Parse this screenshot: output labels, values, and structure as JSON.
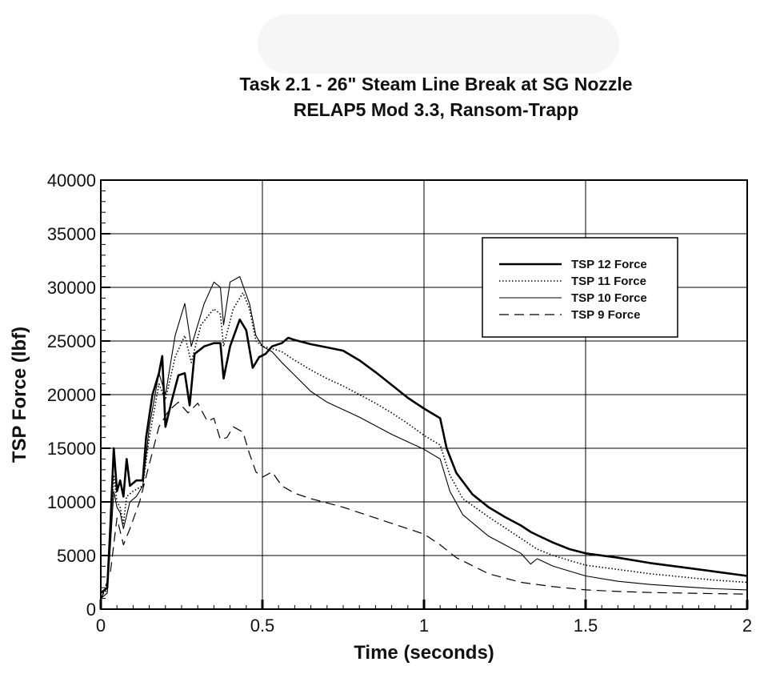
{
  "chart_data": {
    "type": "line",
    "title": "Task 2.1 - 26\" Steam Line Break at SG Nozzle",
    "subtitle": "RELAP5 Mod 3.3, Ransom-Trapp",
    "xlabel": "Time (seconds)",
    "ylabel": "TSP Force (lbf)",
    "xlim": [
      0,
      2
    ],
    "ylim": [
      0,
      40000
    ],
    "x_ticks": [
      "0",
      "0.5",
      "1",
      "1.5",
      "2"
    ],
    "y_ticks": [
      "0",
      "5000",
      "10000",
      "15000",
      "20000",
      "25000",
      "30000",
      "35000",
      "40000"
    ],
    "grid": true,
    "legend_position": "upper-right",
    "series": [
      {
        "name": "TSP 12 Force",
        "style": "solid-thick",
        "points": [
          [
            0,
            1500
          ],
          [
            0.02,
            2000
          ],
          [
            0.03,
            8000
          ],
          [
            0.04,
            15000
          ],
          [
            0.05,
            11000
          ],
          [
            0.06,
            12000
          ],
          [
            0.07,
            10500
          ],
          [
            0.08,
            14000
          ],
          [
            0.09,
            11500
          ],
          [
            0.11,
            12000
          ],
          [
            0.13,
            12000
          ],
          [
            0.14,
            16000
          ],
          [
            0.16,
            20000
          ],
          [
            0.18,
            22000
          ],
          [
            0.19,
            23600
          ],
          [
            0.2,
            17000
          ],
          [
            0.22,
            19500
          ],
          [
            0.24,
            21800
          ],
          [
            0.26,
            22000
          ],
          [
            0.275,
            19000
          ],
          [
            0.29,
            23800
          ],
          [
            0.32,
            24500
          ],
          [
            0.35,
            24800
          ],
          [
            0.37,
            24800
          ],
          [
            0.38,
            21500
          ],
          [
            0.4,
            24500
          ],
          [
            0.43,
            27000
          ],
          [
            0.45,
            26000
          ],
          [
            0.47,
            22500
          ],
          [
            0.49,
            23500
          ],
          [
            0.51,
            23800
          ],
          [
            0.53,
            24500
          ],
          [
            0.56,
            24800
          ],
          [
            0.58,
            25300
          ],
          [
            0.6,
            25100
          ],
          [
            0.65,
            24700
          ],
          [
            0.7,
            24400
          ],
          [
            0.75,
            24100
          ],
          [
            0.8,
            23200
          ],
          [
            0.85,
            22100
          ],
          [
            0.9,
            20900
          ],
          [
            0.95,
            19700
          ],
          [
            1.0,
            18700
          ],
          [
            1.05,
            17800
          ],
          [
            1.07,
            15000
          ],
          [
            1.1,
            12700
          ],
          [
            1.15,
            10700
          ],
          [
            1.2,
            9500
          ],
          [
            1.25,
            8600
          ],
          [
            1.3,
            7800
          ],
          [
            1.33,
            7200
          ],
          [
            1.35,
            6900
          ],
          [
            1.4,
            6200
          ],
          [
            1.45,
            5600
          ],
          [
            1.5,
            5200
          ],
          [
            1.6,
            4800
          ],
          [
            1.7,
            4300
          ],
          [
            1.8,
            3900
          ],
          [
            1.9,
            3500
          ],
          [
            2.0,
            3100
          ]
        ]
      },
      {
        "name": "TSP 11 Force",
        "style": "dotted",
        "points": [
          [
            0,
            1200
          ],
          [
            0.02,
            1800
          ],
          [
            0.03,
            7000
          ],
          [
            0.04,
            12500
          ],
          [
            0.05,
            10000
          ],
          [
            0.06,
            9500
          ],
          [
            0.07,
            8000
          ],
          [
            0.08,
            10500
          ],
          [
            0.1,
            11000
          ],
          [
            0.13,
            11500
          ],
          [
            0.15,
            16000
          ],
          [
            0.18,
            21000
          ],
          [
            0.2,
            19500
          ],
          [
            0.23,
            23500
          ],
          [
            0.26,
            25500
          ],
          [
            0.28,
            23000
          ],
          [
            0.31,
            26500
          ],
          [
            0.35,
            28000
          ],
          [
            0.37,
            27500
          ],
          [
            0.38,
            24500
          ],
          [
            0.41,
            28000
          ],
          [
            0.44,
            29500
          ],
          [
            0.46,
            28000
          ],
          [
            0.48,
            25000
          ],
          [
            0.5,
            24500
          ],
          [
            0.53,
            24300
          ],
          [
            0.56,
            24000
          ],
          [
            0.6,
            23200
          ],
          [
            0.65,
            22300
          ],
          [
            0.7,
            21500
          ],
          [
            0.75,
            20800
          ],
          [
            0.8,
            20000
          ],
          [
            0.85,
            19200
          ],
          [
            0.9,
            18300
          ],
          [
            0.95,
            17300
          ],
          [
            1.0,
            16200
          ],
          [
            1.05,
            15300
          ],
          [
            1.08,
            12500
          ],
          [
            1.12,
            10300
          ],
          [
            1.2,
            8600
          ],
          [
            1.3,
            6600
          ],
          [
            1.35,
            5600
          ],
          [
            1.4,
            5000
          ],
          [
            1.5,
            4100
          ],
          [
            1.6,
            3700
          ],
          [
            1.7,
            3300
          ],
          [
            1.8,
            3000
          ],
          [
            1.9,
            2700
          ],
          [
            2.0,
            2500
          ]
        ]
      },
      {
        "name": "TSP 10 Force",
        "style": "solid-thin",
        "points": [
          [
            0,
            1000
          ],
          [
            0.02,
            1500
          ],
          [
            0.03,
            6000
          ],
          [
            0.04,
            11000
          ],
          [
            0.05,
            9500
          ],
          [
            0.06,
            9000
          ],
          [
            0.07,
            7500
          ],
          [
            0.09,
            10000
          ],
          [
            0.11,
            10500
          ],
          [
            0.13,
            11500
          ],
          [
            0.15,
            17000
          ],
          [
            0.18,
            22000
          ],
          [
            0.2,
            20000
          ],
          [
            0.23,
            25500
          ],
          [
            0.26,
            28500
          ],
          [
            0.28,
            24500
          ],
          [
            0.32,
            28500
          ],
          [
            0.35,
            30500
          ],
          [
            0.37,
            30000
          ],
          [
            0.38,
            26500
          ],
          [
            0.4,
            30500
          ],
          [
            0.43,
            31000
          ],
          [
            0.46,
            28500
          ],
          [
            0.48,
            25500
          ],
          [
            0.5,
            24500
          ],
          [
            0.53,
            24000
          ],
          [
            0.56,
            23000
          ],
          [
            0.6,
            21800
          ],
          [
            0.65,
            20300
          ],
          [
            0.7,
            19300
          ],
          [
            0.75,
            18600
          ],
          [
            0.8,
            17900
          ],
          [
            0.85,
            17100
          ],
          [
            0.9,
            16300
          ],
          [
            0.95,
            15600
          ],
          [
            1.0,
            14900
          ],
          [
            1.05,
            14000
          ],
          [
            1.08,
            11000
          ],
          [
            1.12,
            8800
          ],
          [
            1.2,
            6800
          ],
          [
            1.3,
            5200
          ],
          [
            1.33,
            4200
          ],
          [
            1.35,
            4700
          ],
          [
            1.4,
            4000
          ],
          [
            1.5,
            3100
          ],
          [
            1.6,
            2600
          ],
          [
            1.7,
            2300
          ],
          [
            1.8,
            2100
          ],
          [
            1.9,
            1900
          ],
          [
            2.0,
            1800
          ]
        ]
      },
      {
        "name": "TSP 9 Force",
        "style": "dashed",
        "points": [
          [
            0,
            800
          ],
          [
            0.03,
            3500
          ],
          [
            0.05,
            8500
          ],
          [
            0.07,
            6000
          ],
          [
            0.09,
            7500
          ],
          [
            0.12,
            10000
          ],
          [
            0.15,
            13500
          ],
          [
            0.18,
            17000
          ],
          [
            0.21,
            18500
          ],
          [
            0.24,
            19300
          ],
          [
            0.27,
            18300
          ],
          [
            0.3,
            19200
          ],
          [
            0.33,
            17500
          ],
          [
            0.35,
            17800
          ],
          [
            0.37,
            15800
          ],
          [
            0.39,
            16000
          ],
          [
            0.41,
            17000
          ],
          [
            0.44,
            16500
          ],
          [
            0.46,
            14500
          ],
          [
            0.48,
            12800
          ],
          [
            0.5,
            12300
          ],
          [
            0.53,
            12800
          ],
          [
            0.56,
            11500
          ],
          [
            0.6,
            10800
          ],
          [
            0.65,
            10300
          ],
          [
            0.7,
            9900
          ],
          [
            0.75,
            9500
          ],
          [
            0.8,
            9000
          ],
          [
            0.85,
            8500
          ],
          [
            0.9,
            8000
          ],
          [
            0.95,
            7500
          ],
          [
            1.0,
            7000
          ],
          [
            1.05,
            6000
          ],
          [
            1.1,
            4800
          ],
          [
            1.2,
            3300
          ],
          [
            1.3,
            2500
          ],
          [
            1.4,
            2100
          ],
          [
            1.5,
            1800
          ],
          [
            1.6,
            1650
          ],
          [
            1.7,
            1550
          ],
          [
            1.8,
            1500
          ],
          [
            1.9,
            1450
          ],
          [
            2.0,
            1400
          ]
        ]
      }
    ]
  }
}
